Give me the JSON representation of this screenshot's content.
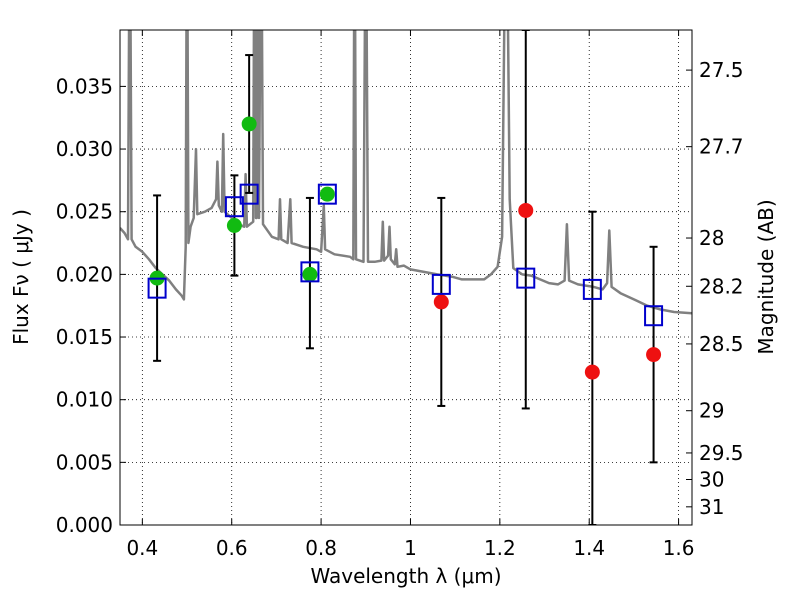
{
  "chart_data": {
    "type": "scatter",
    "xlabel": "Wavelength  λ (μm)",
    "ylabel": "Flux  Fν  ( μJy )",
    "ylabel_right": "Magnitude (AB)",
    "xlim": [
      0.35,
      1.63
    ],
    "ylim": [
      0.0,
      0.0395
    ],
    "grid": true,
    "x_ticks": [
      0.4,
      0.6,
      0.8,
      1.0,
      1.2,
      1.4,
      1.6
    ],
    "x_tick_labels": [
      "0.4",
      "0.6",
      "0.8",
      "1",
      "1.2",
      "1.4",
      "1.6"
    ],
    "y_ticks": [
      0.0,
      0.005,
      0.01,
      0.015,
      0.02,
      0.025,
      0.03,
      0.035
    ],
    "y_tick_labels": [
      "0.000",
      "0.005",
      "0.010",
      "0.015",
      "0.020",
      "0.025",
      "0.030",
      "0.035"
    ],
    "right_ticks": [
      {
        "label": "27.5",
        "flux": 0.0363
      },
      {
        "label": "27.7",
        "flux": 0.03019
      },
      {
        "label": "28",
        "flux": 0.0229
      },
      {
        "label": "28.2",
        "flux": 0.01905
      },
      {
        "label": "28.5",
        "flux": 0.01445
      },
      {
        "label": "29",
        "flux": 0.00912
      },
      {
        "label": "29.5",
        "flux": 0.00575
      },
      {
        "label": "30",
        "flux": 0.00363
      },
      {
        "label": "31",
        "flux": 0.00145
      }
    ],
    "series": [
      {
        "marker": "circle",
        "color": "#11bb11",
        "points": [
          {
            "x": 0.433,
            "y": 0.0197
          },
          {
            "x": 0.606,
            "y": 0.0239
          },
          {
            "x": 0.639,
            "y": 0.032
          },
          {
            "x": 0.775,
            "y": 0.02
          },
          {
            "x": 0.814,
            "y": 0.0264
          }
        ]
      },
      {
        "marker": "circle",
        "color": "#ee1111",
        "points": [
          {
            "x": 1.069,
            "y": 0.0178
          },
          {
            "x": 1.258,
            "y": 0.0251
          },
          {
            "x": 1.407,
            "y": 0.0122
          },
          {
            "x": 1.544,
            "y": 0.0136
          }
        ]
      },
      {
        "marker": "open-square",
        "color": "#0000cc",
        "points": [
          {
            "x": 0.433,
            "y": 0.0189
          },
          {
            "x": 0.606,
            "y": 0.0254
          },
          {
            "x": 0.639,
            "y": 0.0264
          },
          {
            "x": 0.775,
            "y": 0.0202
          },
          {
            "x": 0.814,
            "y": 0.0264
          },
          {
            "x": 1.069,
            "y": 0.0192
          },
          {
            "x": 1.258,
            "y": 0.0197
          },
          {
            "x": 1.407,
            "y": 0.0188
          },
          {
            "x": 1.544,
            "y": 0.0167
          }
        ]
      }
    ],
    "error_bars": [
      {
        "x": 0.433,
        "low": 0.0131,
        "high": 0.0263
      },
      {
        "x": 0.606,
        "low": 0.0199,
        "high": 0.0279
      },
      {
        "x": 0.639,
        "low": 0.0265,
        "high": 0.0375
      },
      {
        "x": 0.775,
        "low": 0.0141,
        "high": 0.0261
      },
      {
        "x": 1.069,
        "low": 0.0095,
        "high": 0.0261
      },
      {
        "x": 1.258,
        "low": 0.0093,
        "high": 0.0395
      },
      {
        "x": 1.407,
        "low": 0.0,
        "high": 0.025
      },
      {
        "x": 1.544,
        "low": 0.005,
        "high": 0.0222
      }
    ],
    "model_spectrum": {
      "color": "#808080",
      "points": [
        [
          0.35,
          0.0237
        ],
        [
          0.36,
          0.0233
        ],
        [
          0.368,
          0.0228
        ],
        [
          0.372,
          0.052
        ],
        [
          0.376,
          0.0228
        ],
        [
          0.385,
          0.0222
        ],
        [
          0.4,
          0.0218
        ],
        [
          0.415,
          0.0212
        ],
        [
          0.43,
          0.0205
        ],
        [
          0.445,
          0.02
        ],
        [
          0.46,
          0.0195
        ],
        [
          0.475,
          0.0188
        ],
        [
          0.488,
          0.0183
        ],
        [
          0.493,
          0.018
        ],
        [
          0.497,
          0.0222
        ],
        [
          0.5,
          0.052
        ],
        [
          0.503,
          0.0225
        ],
        [
          0.508,
          0.0238
        ],
        [
          0.515,
          0.0245
        ],
        [
          0.52,
          0.03
        ],
        [
          0.523,
          0.0248
        ],
        [
          0.54,
          0.025
        ],
        [
          0.555,
          0.0253
        ],
        [
          0.565,
          0.026
        ],
        [
          0.568,
          0.029
        ],
        [
          0.571,
          0.0255
        ],
        [
          0.578,
          0.025
        ],
        [
          0.581,
          0.0312
        ],
        [
          0.584,
          0.025
        ],
        [
          0.6,
          0.0245
        ],
        [
          0.615,
          0.024
        ],
        [
          0.628,
          0.0238
        ],
        [
          0.631,
          0.028
        ],
        [
          0.634,
          0.0238
        ],
        [
          0.648,
          0.0242
        ],
        [
          0.651,
          0.052
        ],
        [
          0.654,
          0.0245
        ],
        [
          0.656,
          0.0245
        ],
        [
          0.658,
          0.052
        ],
        [
          0.661,
          0.0245
        ],
        [
          0.666,
          0.052
        ],
        [
          0.67,
          0.024
        ],
        [
          0.69,
          0.023
        ],
        [
          0.705,
          0.0228
        ],
        [
          0.708,
          0.026
        ],
        [
          0.711,
          0.0228
        ],
        [
          0.725,
          0.0225
        ],
        [
          0.731,
          0.026
        ],
        [
          0.734,
          0.0225
        ],
        [
          0.76,
          0.0222
        ],
        [
          0.79,
          0.022
        ],
        [
          0.8,
          0.0218
        ],
        [
          0.806,
          0.0255
        ],
        [
          0.809,
          0.022
        ],
        [
          0.83,
          0.0216
        ],
        [
          0.865,
          0.0214
        ],
        [
          0.872,
          0.0212
        ],
        [
          0.875,
          0.052
        ],
        [
          0.878,
          0.0212
        ],
        [
          0.895,
          0.021
        ],
        [
          0.9,
          0.052
        ],
        [
          0.905,
          0.021
        ],
        [
          0.92,
          0.021
        ],
        [
          0.935,
          0.0211
        ],
        [
          0.938,
          0.0242
        ],
        [
          0.941,
          0.0211
        ],
        [
          0.95,
          0.0215
        ],
        [
          0.953,
          0.0238
        ],
        [
          0.956,
          0.0212
        ],
        [
          0.965,
          0.0208
        ],
        [
          0.968,
          0.022
        ],
        [
          0.971,
          0.0206
        ],
        [
          0.985,
          0.0207
        ],
        [
          1.0,
          0.0204
        ],
        [
          1.03,
          0.0202
        ],
        [
          1.06,
          0.02
        ],
        [
          1.095,
          0.0198
        ],
        [
          1.115,
          0.0196
        ],
        [
          1.14,
          0.0196
        ],
        [
          1.165,
          0.0196
        ],
        [
          1.18,
          0.02
        ],
        [
          1.195,
          0.0206
        ],
        [
          1.205,
          0.023
        ],
        [
          1.21,
          0.04
        ],
        [
          1.215,
          0.052
        ],
        [
          1.222,
          0.026
        ],
        [
          1.23,
          0.0205
        ],
        [
          1.25,
          0.02
        ],
        [
          1.27,
          0.0199
        ],
        [
          1.29,
          0.0196
        ],
        [
          1.31,
          0.0193
        ],
        [
          1.33,
          0.0192
        ],
        [
          1.345,
          0.0195
        ],
        [
          1.35,
          0.024
        ],
        [
          1.355,
          0.0195
        ],
        [
          1.375,
          0.0192
        ],
        [
          1.41,
          0.019
        ],
        [
          1.43,
          0.0188
        ],
        [
          1.44,
          0.0193
        ],
        [
          1.445,
          0.0235
        ],
        [
          1.45,
          0.019
        ],
        [
          1.47,
          0.0185
        ],
        [
          1.5,
          0.018
        ],
        [
          1.53,
          0.0175
        ],
        [
          1.56,
          0.0172
        ],
        [
          1.59,
          0.017
        ],
        [
          1.63,
          0.0169
        ]
      ]
    }
  }
}
